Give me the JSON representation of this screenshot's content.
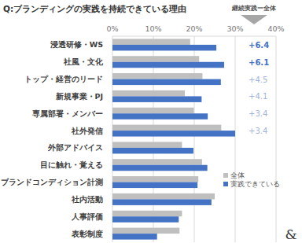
{
  "chart_data": {
    "type": "bar",
    "orientation": "horizontal",
    "title": "Q:ブランディングの実践を持続できている理由",
    "header_note": "継続実践ー全体",
    "logo": "&",
    "categories": [
      "浸透研修・WS",
      "社風・文化",
      "トップ・経営のリード",
      "新規事業・PJ",
      "専属部署・メンバー",
      "社外発信",
      "外部アドバイス",
      "目に触れ・覚える",
      "ブランドコンディション計測",
      "社内活動",
      "人事評価",
      "表彰制度"
    ],
    "series": [
      {
        "name": "全体",
        "color": "#bfbfbf",
        "values": [
          19.0,
          21.2,
          22.0,
          17.7,
          19.9,
          26.6,
          17.0,
          21.9,
          21.0,
          25.0,
          17.0,
          16.4
        ]
      },
      {
        "name": "実践できている",
        "color": "#4472c4",
        "values": [
          25.4,
          27.3,
          26.5,
          21.8,
          23.3,
          30.0,
          19.8,
          23.2,
          20.8,
          24.2,
          16.2,
          10.9
        ]
      }
    ],
    "annotations": [
      "+6.4",
      "+6.1",
      "+4.5",
      "+4.1",
      "+3.4",
      "+3.4"
    ],
    "xlim": [
      0,
      40
    ],
    "xticks": [
      {
        "value": 0,
        "label": "0%"
      },
      {
        "value": 10,
        "label": "10%"
      },
      {
        "value": 20,
        "label": "20%"
      },
      {
        "value": 30,
        "label": "30%"
      },
      {
        "value": 40,
        "label": "40%"
      }
    ],
    "grid": true,
    "legend": "lower right"
  }
}
